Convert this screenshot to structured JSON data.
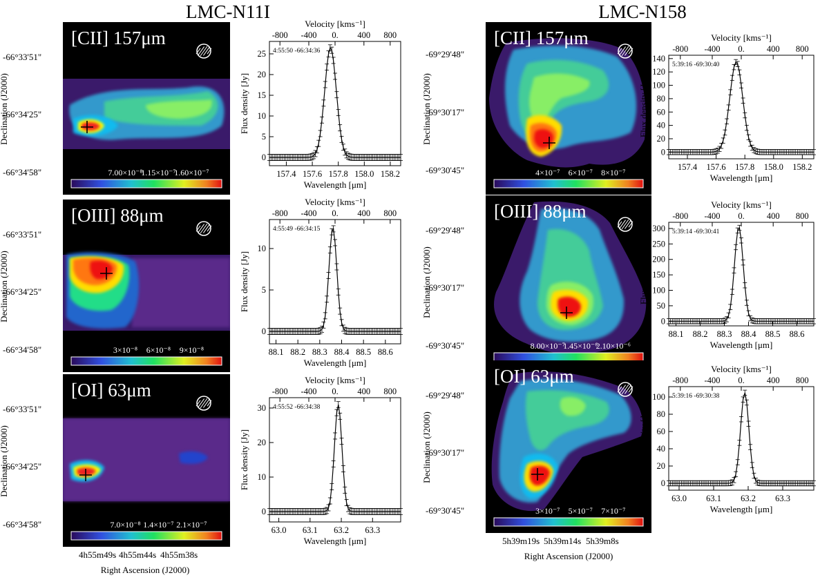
{
  "titles": {
    "left": "LMC-N11I",
    "right": "LMC-N158"
  },
  "panels": [
    {
      "id": "l1",
      "col": "left",
      "line": "[CII] 157μm",
      "cbar": [
        "7.00×10⁻⁸",
        "1.15×10⁻⁷",
        "1.60×10⁻⁷"
      ],
      "dec": [
        "-66°33'51\"",
        "-66°34'25\"",
        "-66°34'58\""
      ],
      "coord": "4:55:50 -66:34:36",
      "xticks": [
        "157.4",
        "157.6",
        "157.8",
        "158.0",
        "158.2"
      ],
      "yticks": [
        "0",
        "5",
        "10",
        "15",
        "20",
        "25"
      ],
      "xmin": 157.27,
      "xmax": 158.28,
      "ymin": -2,
      "ymax": 28,
      "peak": 26.5,
      "center": 157.74,
      "width": 0.045
    },
    {
      "id": "l2",
      "col": "left",
      "line": "[OIII] 88μm",
      "cbar": [
        "3×10⁻⁸",
        "6×10⁻⁸",
        "9×10⁻⁸"
      ],
      "dec": [
        "-66°33'51\"",
        "-66°34'25\"",
        "-66°34'58\""
      ],
      "coord": "4:55:49 -66:34:15",
      "xticks": [
        "88.1",
        "88.2",
        "88.3",
        "88.4",
        "88.5",
        "88.6"
      ],
      "yticks": [
        "0",
        "5",
        "10"
      ],
      "xmin": 88.07,
      "xmax": 88.67,
      "ymin": -1.5,
      "ymax": 13.5,
      "peak": 12.5,
      "center": 88.36,
      "width": 0.018
    },
    {
      "id": "l3",
      "col": "left",
      "line": "[OI] 63μm",
      "cbar": [
        "7.0×10⁻⁸",
        "1.4×10⁻⁷",
        "2.1×10⁻⁷"
      ],
      "dec": [
        "-66°33'51\"",
        "-66°34'25\"",
        "-66°34'58\""
      ],
      "coord": "4:55:52 -66:34:38",
      "xticks": [
        "63.0",
        "63.1",
        "63.2",
        "63.3"
      ],
      "yticks": [
        "0",
        "10",
        "20",
        "30"
      ],
      "xmin": 62.97,
      "xmax": 63.39,
      "ymin": -3,
      "ymax": 33,
      "peak": 31,
      "center": 63.19,
      "width": 0.012
    },
    {
      "id": "r1",
      "col": "right",
      "line": "[CII] 157μm",
      "cbar": [
        "4×10⁻⁷",
        "6×10⁻⁷",
        "8×10⁻⁷"
      ],
      "dec": [
        "-69°29'48\"",
        "-69°30'17\"",
        "-69°30'45\""
      ],
      "coord": "5:39:16 -69:30:40",
      "xticks": [
        "157.4",
        "157.6",
        "157.8",
        "158.0",
        "158.2"
      ],
      "yticks": [
        "0",
        "20",
        "40",
        "60",
        "80",
        "100",
        "120",
        "140"
      ],
      "xmin": 157.27,
      "xmax": 158.28,
      "ymin": -10,
      "ymax": 145,
      "peak": 135,
      "center": 157.74,
      "width": 0.045
    },
    {
      "id": "r2",
      "col": "right",
      "line": "[OIII] 88μm",
      "cbar": [
        "8.00×10⁻⁷",
        "1.45×10⁻⁶",
        "2.10×10⁻⁶"
      ],
      "dec": [
        "-69°29'48\"",
        "-69°30'17\"",
        "-69°30'45\""
      ],
      "coord": "5:39:14 -69:30:41",
      "xticks": [
        "88.1",
        "88.2",
        "88.3",
        "88.4",
        "88.5",
        "88.6"
      ],
      "yticks": [
        "0",
        "50",
        "100",
        "150",
        "200",
        "250",
        "300"
      ],
      "xmin": 88.07,
      "xmax": 88.67,
      "ymin": -15,
      "ymax": 320,
      "peak": 305,
      "center": 88.36,
      "width": 0.018
    },
    {
      "id": "r3",
      "col": "right",
      "line": "[OI] 63μm",
      "cbar": [
        "3×10⁻⁷",
        "5×10⁻⁷",
        "7×10⁻⁷"
      ],
      "dec": [
        "-69°29'48\"",
        "-69°30'17\"",
        "-69°30'45\""
      ],
      "coord": "5:39:16 -69:30:38",
      "xticks": [
        "63.0",
        "63.1",
        "63.2",
        "63.3"
      ],
      "yticks": [
        "0",
        "20",
        "40",
        "60",
        "80",
        "100"
      ],
      "xmin": 62.97,
      "xmax": 63.39,
      "ymin": -8,
      "ymax": 112,
      "peak": 105,
      "center": 63.19,
      "width": 0.012
    }
  ],
  "velocity": {
    "label": "Velocity [kms⁻¹]",
    "ticks": [
      "-800",
      "-400",
      "0.",
      "400",
      "800"
    ]
  },
  "spec_labels": {
    "x": "Wavelength [μm]",
    "y": "Flux density [Jy]"
  },
  "map_labels": {
    "dec": "Declination (J2000)",
    "ra": "Right Ascension (J2000)"
  },
  "ra_left": [
    "4h55m49s",
    "4h55m44s",
    "4h55m38s"
  ],
  "ra_right": [
    "5h39m19s",
    "5h39m14s",
    "5h39m8s"
  ]
}
